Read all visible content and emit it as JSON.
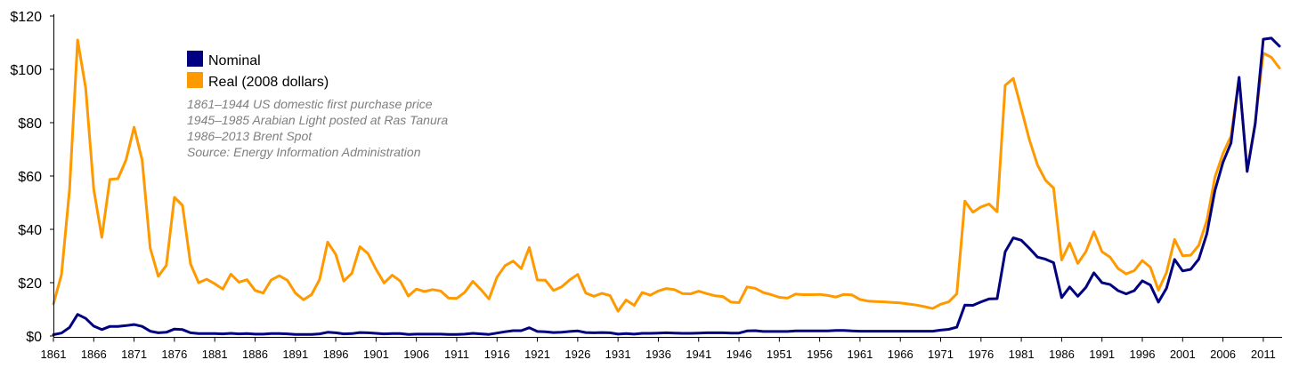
{
  "chart_data": {
    "type": "line",
    "xlim": [
      1861,
      2013
    ],
    "ylim": [
      0,
      120
    ],
    "x_ticks": [
      "1861",
      "1866",
      "1871",
      "1876",
      "1881",
      "1886",
      "1891",
      "1896",
      "1901",
      "1906",
      "1911",
      "1916",
      "1921",
      "1926",
      "1931",
      "1936",
      "1941",
      "1946",
      "1951",
      "1956",
      "1961",
      "1966",
      "1971",
      "1976",
      "1981",
      "1986",
      "1991",
      "1996",
      "2001",
      "2006",
      "2011"
    ],
    "y_ticks": [
      "$0",
      "$20",
      "$40",
      "$60",
      "$80",
      "$100",
      "$120"
    ],
    "y_tick_values": [
      0,
      20,
      40,
      60,
      80,
      100,
      120
    ],
    "grid": false,
    "legend_position": "top-left",
    "annotations": [
      "1861–1944 US domestic first purchase price",
      "1945–1985 Arabian Light posted at Ras Tanura",
      "1986–2013 Brent Spot",
      "Source: Energy Information Administration"
    ],
    "series": [
      {
        "name": "Nominal",
        "color": "#000080",
        "points": [
          [
            1861,
            0.5
          ],
          [
            1862,
            1.1
          ],
          [
            1863,
            3.2
          ],
          [
            1864,
            8.1
          ],
          [
            1865,
            6.6
          ],
          [
            1866,
            3.7
          ],
          [
            1867,
            2.4
          ],
          [
            1868,
            3.6
          ],
          [
            1869,
            3.6
          ],
          [
            1870,
            3.9
          ],
          [
            1871,
            4.3
          ],
          [
            1872,
            3.6
          ],
          [
            1873,
            1.8
          ],
          [
            1874,
            1.2
          ],
          [
            1875,
            1.4
          ],
          [
            1876,
            2.6
          ],
          [
            1877,
            2.4
          ],
          [
            1878,
            1.2
          ],
          [
            1879,
            0.9
          ],
          [
            1880,
            0.9
          ],
          [
            1881,
            0.9
          ],
          [
            1882,
            0.8
          ],
          [
            1883,
            1.0
          ],
          [
            1884,
            0.8
          ],
          [
            1885,
            0.9
          ],
          [
            1886,
            0.7
          ],
          [
            1887,
            0.7
          ],
          [
            1888,
            0.9
          ],
          [
            1889,
            0.9
          ],
          [
            1890,
            0.8
          ],
          [
            1891,
            0.6
          ],
          [
            1892,
            0.6
          ],
          [
            1893,
            0.6
          ],
          [
            1894,
            0.8
          ],
          [
            1895,
            1.4
          ],
          [
            1896,
            1.2
          ],
          [
            1897,
            0.8
          ],
          [
            1898,
            0.9
          ],
          [
            1899,
            1.3
          ],
          [
            1900,
            1.2
          ],
          [
            1901,
            1.0
          ],
          [
            1902,
            0.8
          ],
          [
            1903,
            0.9
          ],
          [
            1904,
            0.9
          ],
          [
            1905,
            0.6
          ],
          [
            1906,
            0.7
          ],
          [
            1907,
            0.7
          ],
          [
            1908,
            0.7
          ],
          [
            1909,
            0.7
          ],
          [
            1910,
            0.6
          ],
          [
            1911,
            0.6
          ],
          [
            1912,
            0.7
          ],
          [
            1913,
            1.0
          ],
          [
            1914,
            0.8
          ],
          [
            1915,
            0.6
          ],
          [
            1916,
            1.1
          ],
          [
            1917,
            1.6
          ],
          [
            1918,
            2.0
          ],
          [
            1919,
            2.0
          ],
          [
            1920,
            3.1
          ],
          [
            1921,
            1.7
          ],
          [
            1922,
            1.6
          ],
          [
            1923,
            1.3
          ],
          [
            1924,
            1.4
          ],
          [
            1925,
            1.7
          ],
          [
            1926,
            1.9
          ],
          [
            1927,
            1.3
          ],
          [
            1928,
            1.2
          ],
          [
            1929,
            1.3
          ],
          [
            1930,
            1.2
          ],
          [
            1931,
            0.7
          ],
          [
            1932,
            0.9
          ],
          [
            1933,
            0.7
          ],
          [
            1934,
            1.0
          ],
          [
            1935,
            1.0
          ],
          [
            1936,
            1.1
          ],
          [
            1937,
            1.2
          ],
          [
            1938,
            1.1
          ],
          [
            1939,
            1.0
          ],
          [
            1940,
            1.0
          ],
          [
            1941,
            1.1
          ],
          [
            1942,
            1.2
          ],
          [
            1943,
            1.2
          ],
          [
            1944,
            1.2
          ],
          [
            1945,
            1.1
          ],
          [
            1946,
            1.1
          ],
          [
            1947,
            1.9
          ],
          [
            1948,
            2.0
          ],
          [
            1949,
            1.7
          ],
          [
            1950,
            1.7
          ],
          [
            1951,
            1.7
          ],
          [
            1952,
            1.7
          ],
          [
            1953,
            1.9
          ],
          [
            1954,
            1.9
          ],
          [
            1955,
            1.9
          ],
          [
            1956,
            1.9
          ],
          [
            1957,
            1.9
          ],
          [
            1958,
            2.1
          ],
          [
            1959,
            2.1
          ],
          [
            1960,
            1.9
          ],
          [
            1961,
            1.8
          ],
          [
            1962,
            1.8
          ],
          [
            1963,
            1.8
          ],
          [
            1964,
            1.8
          ],
          [
            1965,
            1.8
          ],
          [
            1966,
            1.8
          ],
          [
            1967,
            1.8
          ],
          [
            1968,
            1.8
          ],
          [
            1969,
            1.8
          ],
          [
            1970,
            1.8
          ],
          [
            1971,
            2.2
          ],
          [
            1972,
            2.5
          ],
          [
            1973,
            3.3
          ],
          [
            1974,
            11.6
          ],
          [
            1975,
            11.5
          ],
          [
            1976,
            12.8
          ],
          [
            1977,
            13.9
          ],
          [
            1978,
            14.0
          ],
          [
            1979,
            31.6
          ],
          [
            1980,
            36.8
          ],
          [
            1981,
            35.9
          ],
          [
            1982,
            32.9
          ],
          [
            1983,
            29.6
          ],
          [
            1984,
            28.8
          ],
          [
            1985,
            27.5
          ],
          [
            1986,
            14.4
          ],
          [
            1987,
            18.4
          ],
          [
            1988,
            14.9
          ],
          [
            1989,
            18.2
          ],
          [
            1990,
            23.7
          ],
          [
            1991,
            20.0
          ],
          [
            1992,
            19.3
          ],
          [
            1993,
            17.0
          ],
          [
            1994,
            15.8
          ],
          [
            1995,
            17.0
          ],
          [
            1996,
            20.7
          ],
          [
            1997,
            19.1
          ],
          [
            1998,
            12.7
          ],
          [
            1999,
            17.9
          ],
          [
            2000,
            28.7
          ],
          [
            2001,
            24.4
          ],
          [
            2002,
            25.0
          ],
          [
            2003,
            28.8
          ],
          [
            2004,
            38.3
          ],
          [
            2005,
            54.5
          ],
          [
            2006,
            65.1
          ],
          [
            2007,
            72.4
          ],
          [
            2008,
            97.0
          ],
          [
            2009,
            61.7
          ],
          [
            2010,
            79.6
          ],
          [
            2011,
            111.3
          ],
          [
            2012,
            111.7
          ],
          [
            2013,
            108.7
          ]
        ]
      },
      {
        "name": "Real (2008 dollars)",
        "color": "#ff9900",
        "points": [
          [
            1861,
            12
          ],
          [
            1862,
            23
          ],
          [
            1863,
            55
          ],
          [
            1864,
            111
          ],
          [
            1865,
            93
          ],
          [
            1866,
            55
          ],
          [
            1867,
            37
          ],
          [
            1868,
            58.7
          ],
          [
            1869,
            59
          ],
          [
            1870,
            66
          ],
          [
            1871,
            78.3
          ],
          [
            1872,
            66
          ],
          [
            1873,
            33
          ],
          [
            1874,
            22.4
          ],
          [
            1875,
            26.5
          ],
          [
            1876,
            52
          ],
          [
            1877,
            49
          ],
          [
            1878,
            27
          ],
          [
            1879,
            20
          ],
          [
            1880,
            21.3
          ],
          [
            1881,
            19.6
          ],
          [
            1882,
            17.6
          ],
          [
            1883,
            23.2
          ],
          [
            1884,
            20.2
          ],
          [
            1885,
            21.1
          ],
          [
            1886,
            17.1
          ],
          [
            1887,
            16.1
          ],
          [
            1888,
            21
          ],
          [
            1889,
            22.6
          ],
          [
            1890,
            20.9
          ],
          [
            1891,
            16.1
          ],
          [
            1892,
            13.6
          ],
          [
            1893,
            15.5
          ],
          [
            1894,
            21.2
          ],
          [
            1895,
            35.2
          ],
          [
            1896,
            30.6
          ],
          [
            1897,
            20.6
          ],
          [
            1898,
            23.5
          ],
          [
            1899,
            33.5
          ],
          [
            1900,
            30.9
          ],
          [
            1901,
            25
          ],
          [
            1902,
            19.9
          ],
          [
            1903,
            22.8
          ],
          [
            1904,
            20.6
          ],
          [
            1905,
            15
          ],
          [
            1906,
            17.6
          ],
          [
            1907,
            16.7
          ],
          [
            1908,
            17.4
          ],
          [
            1909,
            16.9
          ],
          [
            1910,
            14.2
          ],
          [
            1911,
            14.1
          ],
          [
            1912,
            16.4
          ],
          [
            1913,
            20.5
          ],
          [
            1914,
            17.4
          ],
          [
            1915,
            13.9
          ],
          [
            1916,
            22.1
          ],
          [
            1917,
            26.4
          ],
          [
            1918,
            28.1
          ],
          [
            1919,
            25.3
          ],
          [
            1920,
            33.2
          ],
          [
            1921,
            21
          ],
          [
            1922,
            20.9
          ],
          [
            1923,
            17.1
          ],
          [
            1924,
            18.4
          ],
          [
            1925,
            21
          ],
          [
            1926,
            23.1
          ],
          [
            1927,
            16.1
          ],
          [
            1928,
            14.9
          ],
          [
            1929,
            16
          ],
          [
            1930,
            15.2
          ],
          [
            1931,
            9.3
          ],
          [
            1932,
            13.5
          ],
          [
            1933,
            11.5
          ],
          [
            1934,
            16.3
          ],
          [
            1935,
            15.3
          ],
          [
            1936,
            16.9
          ],
          [
            1937,
            17.8
          ],
          [
            1938,
            17.4
          ],
          [
            1939,
            15.9
          ],
          [
            1940,
            15.8
          ],
          [
            1941,
            16.8
          ],
          [
            1942,
            15.9
          ],
          [
            1943,
            15.1
          ],
          [
            1944,
            14.8
          ],
          [
            1945,
            12.7
          ],
          [
            1946,
            12.5
          ],
          [
            1947,
            18.4
          ],
          [
            1948,
            17.9
          ],
          [
            1949,
            16.3
          ],
          [
            1950,
            15.5
          ],
          [
            1951,
            14.5
          ],
          [
            1952,
            14.2
          ],
          [
            1953,
            15.7
          ],
          [
            1954,
            15.5
          ],
          [
            1955,
            15.5
          ],
          [
            1956,
            15.6
          ],
          [
            1957,
            15.2
          ],
          [
            1958,
            14.6
          ],
          [
            1959,
            15.6
          ],
          [
            1960,
            15.4
          ],
          [
            1961,
            13.7
          ],
          [
            1962,
            13.1
          ],
          [
            1963,
            12.9
          ],
          [
            1964,
            12.8
          ],
          [
            1965,
            12.6
          ],
          [
            1966,
            12.4
          ],
          [
            1967,
            12
          ],
          [
            1968,
            11.6
          ],
          [
            1969,
            11
          ],
          [
            1970,
            10.3
          ],
          [
            1971,
            11.9
          ],
          [
            1972,
            12.8
          ],
          [
            1973,
            15.8
          ],
          [
            1974,
            50.6
          ],
          [
            1975,
            46.4
          ],
          [
            1976,
            48.4
          ],
          [
            1977,
            49.5
          ],
          [
            1978,
            46.6
          ],
          [
            1979,
            94
          ],
          [
            1980,
            96.6
          ],
          [
            1981,
            85.2
          ],
          [
            1982,
            73.6
          ],
          [
            1983,
            64.2
          ],
          [
            1984,
            58.4
          ],
          [
            1985,
            55.5
          ],
          [
            1986,
            28.5
          ],
          [
            1987,
            34.8
          ],
          [
            1988,
            27.2
          ],
          [
            1989,
            31.6
          ],
          [
            1990,
            39.1
          ],
          [
            1991,
            31.6
          ],
          [
            1992,
            29.6
          ],
          [
            1993,
            25.3
          ],
          [
            1994,
            23.3
          ],
          [
            1995,
            24.5
          ],
          [
            1996,
            28.3
          ],
          [
            1997,
            25.8
          ],
          [
            1998,
            17.2
          ],
          [
            1999,
            23.8
          ],
          [
            2000,
            36.2
          ],
          [
            2001,
            30.1
          ],
          [
            2002,
            30.3
          ],
          [
            2003,
            34
          ],
          [
            2004,
            43.3
          ],
          [
            2005,
            59.5
          ],
          [
            2006,
            68.4
          ],
          [
            2007,
            75
          ],
          [
            2008,
            96.9
          ],
          [
            2009,
            62
          ],
          [
            2010,
            80
          ],
          [
            2011,
            106.1
          ],
          [
            2012,
            104.5
          ],
          [
            2013,
            100.5
          ]
        ]
      }
    ]
  }
}
